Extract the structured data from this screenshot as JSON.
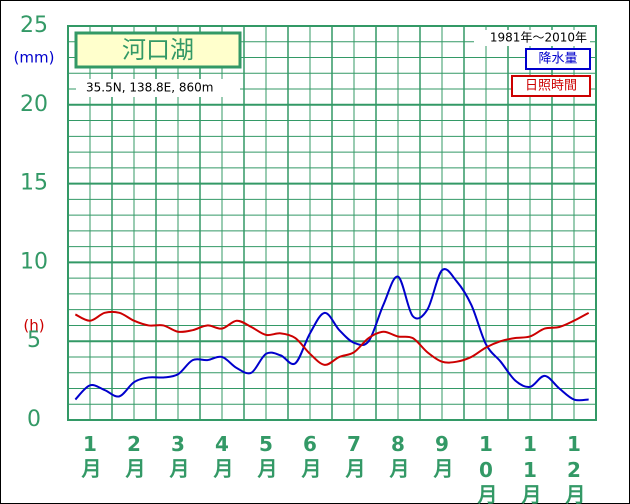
{
  "chart_data": {
    "type": "line",
    "title": "河口湖",
    "subtitle": "35.5N,  138.8E,  860m",
    "period": "1981年～2010年",
    "units": [
      {
        "text": "(mm)",
        "color": "#0000cc",
        "at": 25
      },
      {
        "text": "(h)",
        "color": "#cc0000",
        "at": 8
      }
    ],
    "categories": [
      null,
      "1月",
      null,
      null,
      "2月",
      null,
      null,
      "3月",
      null,
      null,
      "4月",
      null,
      null,
      "5月",
      null,
      null,
      "6月",
      null,
      null,
      "7月",
      null,
      null,
      "8月",
      null,
      null,
      "9月",
      null,
      null,
      "10月",
      null,
      null,
      "11月",
      null,
      null,
      "12月",
      null
    ],
    "series": [
      {
        "name": "降水量",
        "color": "#0000cc",
        "values": [
          1.3,
          2.2,
          1.9,
          1.5,
          2.4,
          2.7,
          2.7,
          2.9,
          3.8,
          3.8,
          4.0,
          3.3,
          3.0,
          4.2,
          4.1,
          3.6,
          5.5,
          6.8,
          5.7,
          4.9,
          5.0,
          7.3,
          9.1,
          6.6,
          7.0,
          9.5,
          8.8,
          7.3,
          4.8,
          3.7,
          2.5,
          2.1,
          2.8,
          2.0,
          1.3,
          1.3
        ]
      },
      {
        "name": "日照時間",
        "color": "#cc0000",
        "values": [
          6.7,
          6.3,
          6.8,
          6.8,
          6.3,
          6.0,
          6.0,
          5.6,
          5.7,
          6.0,
          5.8,
          6.3,
          5.9,
          5.4,
          5.5,
          5.2,
          4.2,
          3.5,
          4.0,
          4.3,
          5.2,
          5.6,
          5.3,
          5.2,
          4.3,
          3.7,
          3.7,
          4.0,
          4.6,
          5.0,
          5.2,
          5.3,
          5.8,
          5.9,
          6.3,
          6.8
        ]
      }
    ],
    "ylim": [
      0,
      25
    ],
    "yticks": [
      0,
      5,
      10,
      15,
      20,
      25
    ],
    "minor_yticks": [
      1,
      2,
      3,
      4,
      6,
      7,
      8,
      9,
      11,
      12,
      13,
      14,
      16,
      17,
      18,
      19,
      21,
      22,
      23,
      24
    ],
    "grid": true
  }
}
